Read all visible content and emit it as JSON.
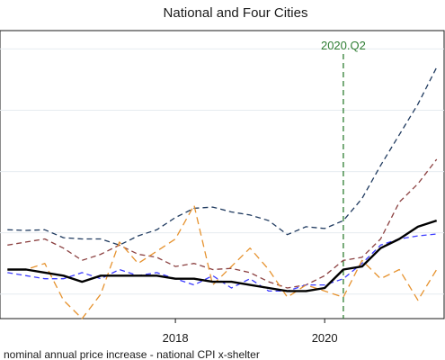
{
  "chart_data": {
    "type": "line",
    "title": "National and Four Cities",
    "note": "nominal annual price increase - national CPI x-shelter",
    "x_ticks": [
      2018,
      2020
    ],
    "xlim": [
      2015.65,
      2021.6
    ],
    "ylim": [
      -14,
      33
    ],
    "grid": "horizontal",
    "y_gridlines": [
      -10,
      0,
      10,
      20,
      30
    ],
    "vline": {
      "x": 2020.25,
      "label": "2020.Q2",
      "color": "#2e7d32"
    },
    "series": [
      {
        "color": "#1f3a5f",
        "dash": "6,4",
        "width": 1.3,
        "x": [
          2015.75,
          2016.0,
          2016.25,
          2016.5,
          2016.75,
          2017.0,
          2017.25,
          2017.5,
          2017.75,
          2018.0,
          2018.25,
          2018.5,
          2018.75,
          2019.0,
          2019.25,
          2019.5,
          2019.75,
          2020.0,
          2020.25,
          2020.5,
          2020.75,
          2021.0,
          2021.25,
          2021.5
        ],
        "y": [
          0.5,
          0.4,
          0.5,
          -0.8,
          -1.0,
          -1.0,
          -2.0,
          -0.5,
          0.5,
          2.5,
          4.0,
          4.2,
          3.4,
          2.9,
          2.0,
          -0.3,
          1.0,
          0.7,
          2.0,
          5.6,
          11.0,
          16.0,
          21.0,
          27.0
        ]
      },
      {
        "color": "#8b4040",
        "dash": "6,4",
        "width": 1.3,
        "x": [
          2015.75,
          2016.0,
          2016.25,
          2016.5,
          2016.75,
          2017.0,
          2017.25,
          2017.5,
          2017.75,
          2018.0,
          2018.25,
          2018.5,
          2018.75,
          2019.0,
          2019.25,
          2019.5,
          2019.75,
          2020.0,
          2020.25,
          2020.5,
          2020.75,
          2021.0,
          2021.25,
          2021.5
        ],
        "y": [
          -2.0,
          -1.5,
          -1.0,
          -2.5,
          -4.5,
          -3.5,
          -2.0,
          -3.5,
          -4.0,
          -5.5,
          -5.0,
          -6.0,
          -5.8,
          -6.5,
          -8.0,
          -9.0,
          -8.5,
          -7.0,
          -4.5,
          -4.0,
          -1.0,
          5.0,
          8.0,
          12.0
        ]
      },
      {
        "color": "#3b3bff",
        "dash": "6,4",
        "width": 1.3,
        "x": [
          2015.75,
          2016.0,
          2016.25,
          2016.5,
          2016.75,
          2017.0,
          2017.25,
          2017.5,
          2017.75,
          2018.0,
          2018.25,
          2018.5,
          2018.75,
          2019.0,
          2019.25,
          2019.5,
          2019.75,
          2020.0,
          2020.25,
          2020.5,
          2020.75,
          2021.0,
          2021.25,
          2021.5
        ],
        "y": [
          -6.5,
          -7.0,
          -7.5,
          -7.5,
          -6.5,
          -7.5,
          -6.0,
          -7.0,
          -6.5,
          -7.5,
          -8.5,
          -7.0,
          -9.0,
          -7.5,
          -9.5,
          -9.5,
          -8.5,
          -8.5,
          -7.5,
          -5.0,
          -2.0,
          -1.0,
          -0.5,
          -0.2
        ]
      },
      {
        "color": "#e6922e",
        "dash": "8,5",
        "width": 1.3,
        "x": [
          2015.75,
          2016.0,
          2016.25,
          2016.5,
          2016.75,
          2017.0,
          2017.25,
          2017.5,
          2017.75,
          2018.0,
          2018.25,
          2018.5,
          2018.75,
          2019.0,
          2019.25,
          2019.5,
          2019.75,
          2020.0,
          2020.25,
          2020.5,
          2020.75,
          2021.0,
          2021.25,
          2021.5
        ],
        "y": [
          -6.0,
          -6.0,
          -5.0,
          -11.0,
          -14.0,
          -10.0,
          -1.5,
          -5.0,
          -3.0,
          -1.0,
          4.5,
          -8.5,
          -5.5,
          -2.5,
          -6.0,
          -10.5,
          -8.5,
          -9.5,
          -10.5,
          -4.5,
          -7.5,
          -6.0,
          -11.0,
          -6.0
        ]
      },
      {
        "color": "#000000",
        "dash": "",
        "width": 2.4,
        "x": [
          2015.75,
          2016.0,
          2016.25,
          2016.5,
          2016.75,
          2017.0,
          2017.25,
          2017.5,
          2017.75,
          2018.0,
          2018.25,
          2018.5,
          2018.75,
          2019.0,
          2019.25,
          2019.5,
          2019.75,
          2020.0,
          2020.25,
          2020.5,
          2020.75,
          2021.0,
          2021.25,
          2021.5
        ],
        "y": [
          -6.0,
          -6.0,
          -6.5,
          -7.0,
          -8.0,
          -7.0,
          -7.0,
          -7.0,
          -7.0,
          -7.5,
          -7.5,
          -8.0,
          -8.0,
          -8.5,
          -9.0,
          -9.5,
          -9.5,
          -9.0,
          -6.0,
          -5.5,
          -2.5,
          -1.0,
          1.0,
          2.0
        ]
      }
    ]
  }
}
